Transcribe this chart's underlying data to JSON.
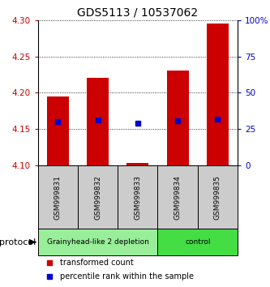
{
  "title": "GDS5113 / 10537062",
  "samples": [
    "GSM999831",
    "GSM999832",
    "GSM999833",
    "GSM999834",
    "GSM999835"
  ],
  "bar_bottoms": [
    4.1,
    4.1,
    4.1,
    4.1,
    4.1
  ],
  "bar_tops": [
    4.195,
    4.22,
    4.103,
    4.23,
    4.295
  ],
  "blue_y": [
    4.16,
    4.162,
    4.158,
    4.161,
    4.163
  ],
  "ylim": [
    4.1,
    4.3
  ],
  "yticks_left": [
    4.1,
    4.15,
    4.2,
    4.25,
    4.3
  ],
  "yticks_right": [
    0,
    25,
    50,
    75,
    100
  ],
  "ytick_right_labels": [
    "0",
    "25",
    "50",
    "75",
    "100%"
  ],
  "bar_color": "#cc0000",
  "blue_color": "#0000cc",
  "groups": [
    {
      "label": "Grainyhead-like 2 depletion",
      "indices": [
        0,
        1,
        2
      ],
      "color": "#99ee99"
    },
    {
      "label": "control",
      "indices": [
        3,
        4
      ],
      "color": "#44dd44"
    }
  ],
  "protocol_label": "protocol",
  "legend_items": [
    {
      "color": "#cc0000",
      "label": "transformed count"
    },
    {
      "color": "#0000cc",
      "label": "percentile rank within the sample"
    }
  ],
  "left_tick_color": "#cc0000",
  "right_tick_color": "#0000cc",
  "bar_width": 0.55,
  "sample_box_color": "#cccccc",
  "spine_color": "#000000"
}
